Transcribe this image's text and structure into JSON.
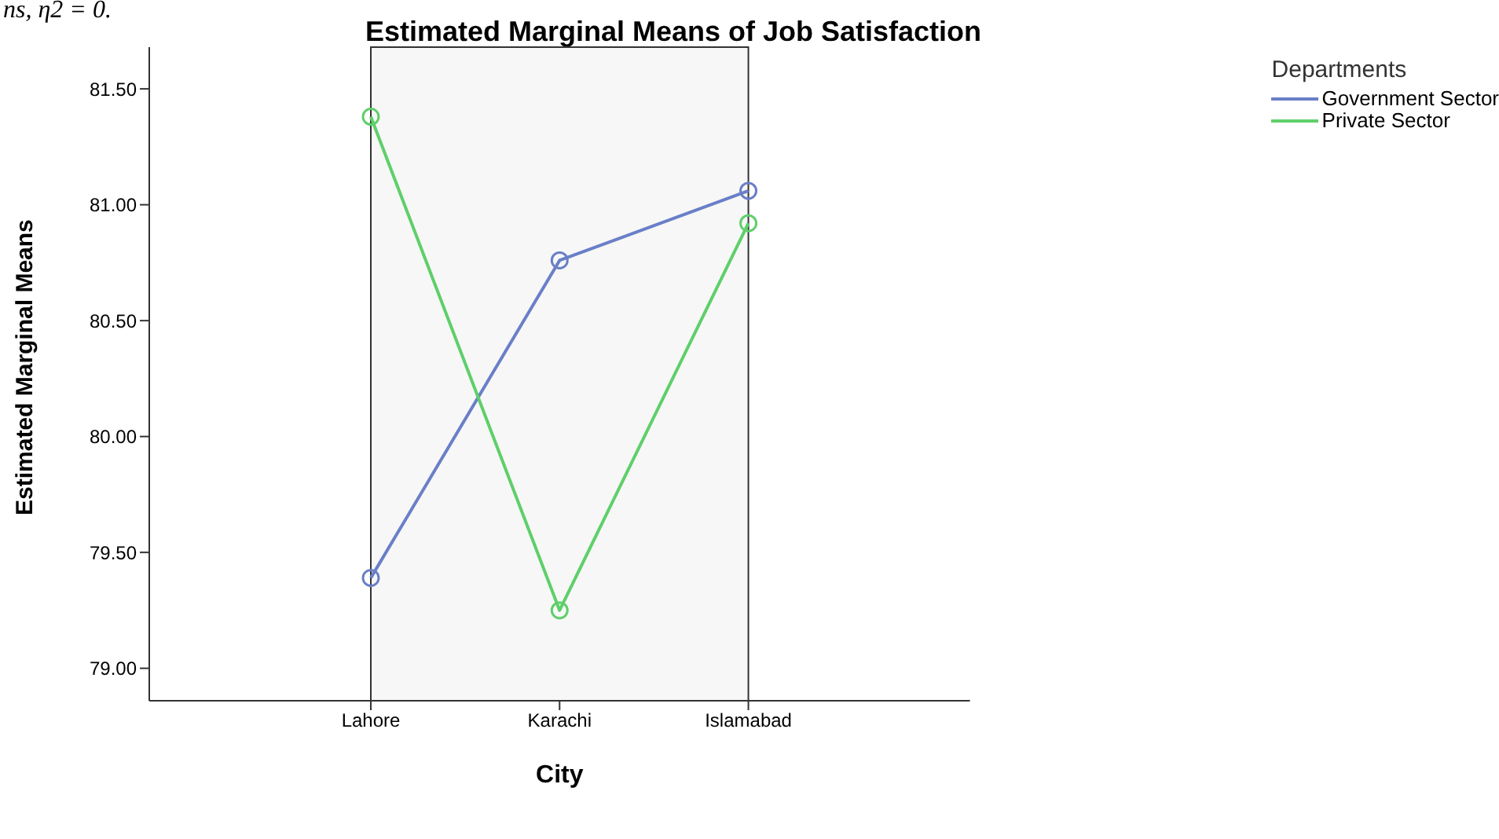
{
  "chart_data": {
    "type": "line",
    "title": "Estimated Marginal Means of Job Satisfaction",
    "xlabel": "City",
    "ylabel": "Estimated Marginal Means",
    "legend_title": "Departments",
    "annotations": [
      "ns, η2 = 0."
    ],
    "categories": [
      "Lahore",
      "Karachi",
      "Islamabad"
    ],
    "series": [
      {
        "name": "Government Sector",
        "color": "#6a7fc8",
        "values": [
          79.39,
          80.76,
          81.06
        ]
      },
      {
        "name": "Private Sector",
        "color": "#5fcf6a",
        "values": [
          81.38,
          79.25,
          80.92
        ]
      }
    ],
    "ylim": [
      78.86,
      81.68
    ],
    "yticks": [
      {
        "value": 79,
        "label": "79.00"
      },
      {
        "value": 79.5,
        "label": "79.50"
      },
      {
        "value": 80,
        "label": "80.00"
      },
      {
        "value": 80.5,
        "label": "80.50"
      },
      {
        "value": 81,
        "label": "81.00"
      },
      {
        "value": 81.5,
        "label": "81.50"
      }
    ],
    "grid": false,
    "legend": "right",
    "marker": "circle",
    "line_style": "solid"
  }
}
